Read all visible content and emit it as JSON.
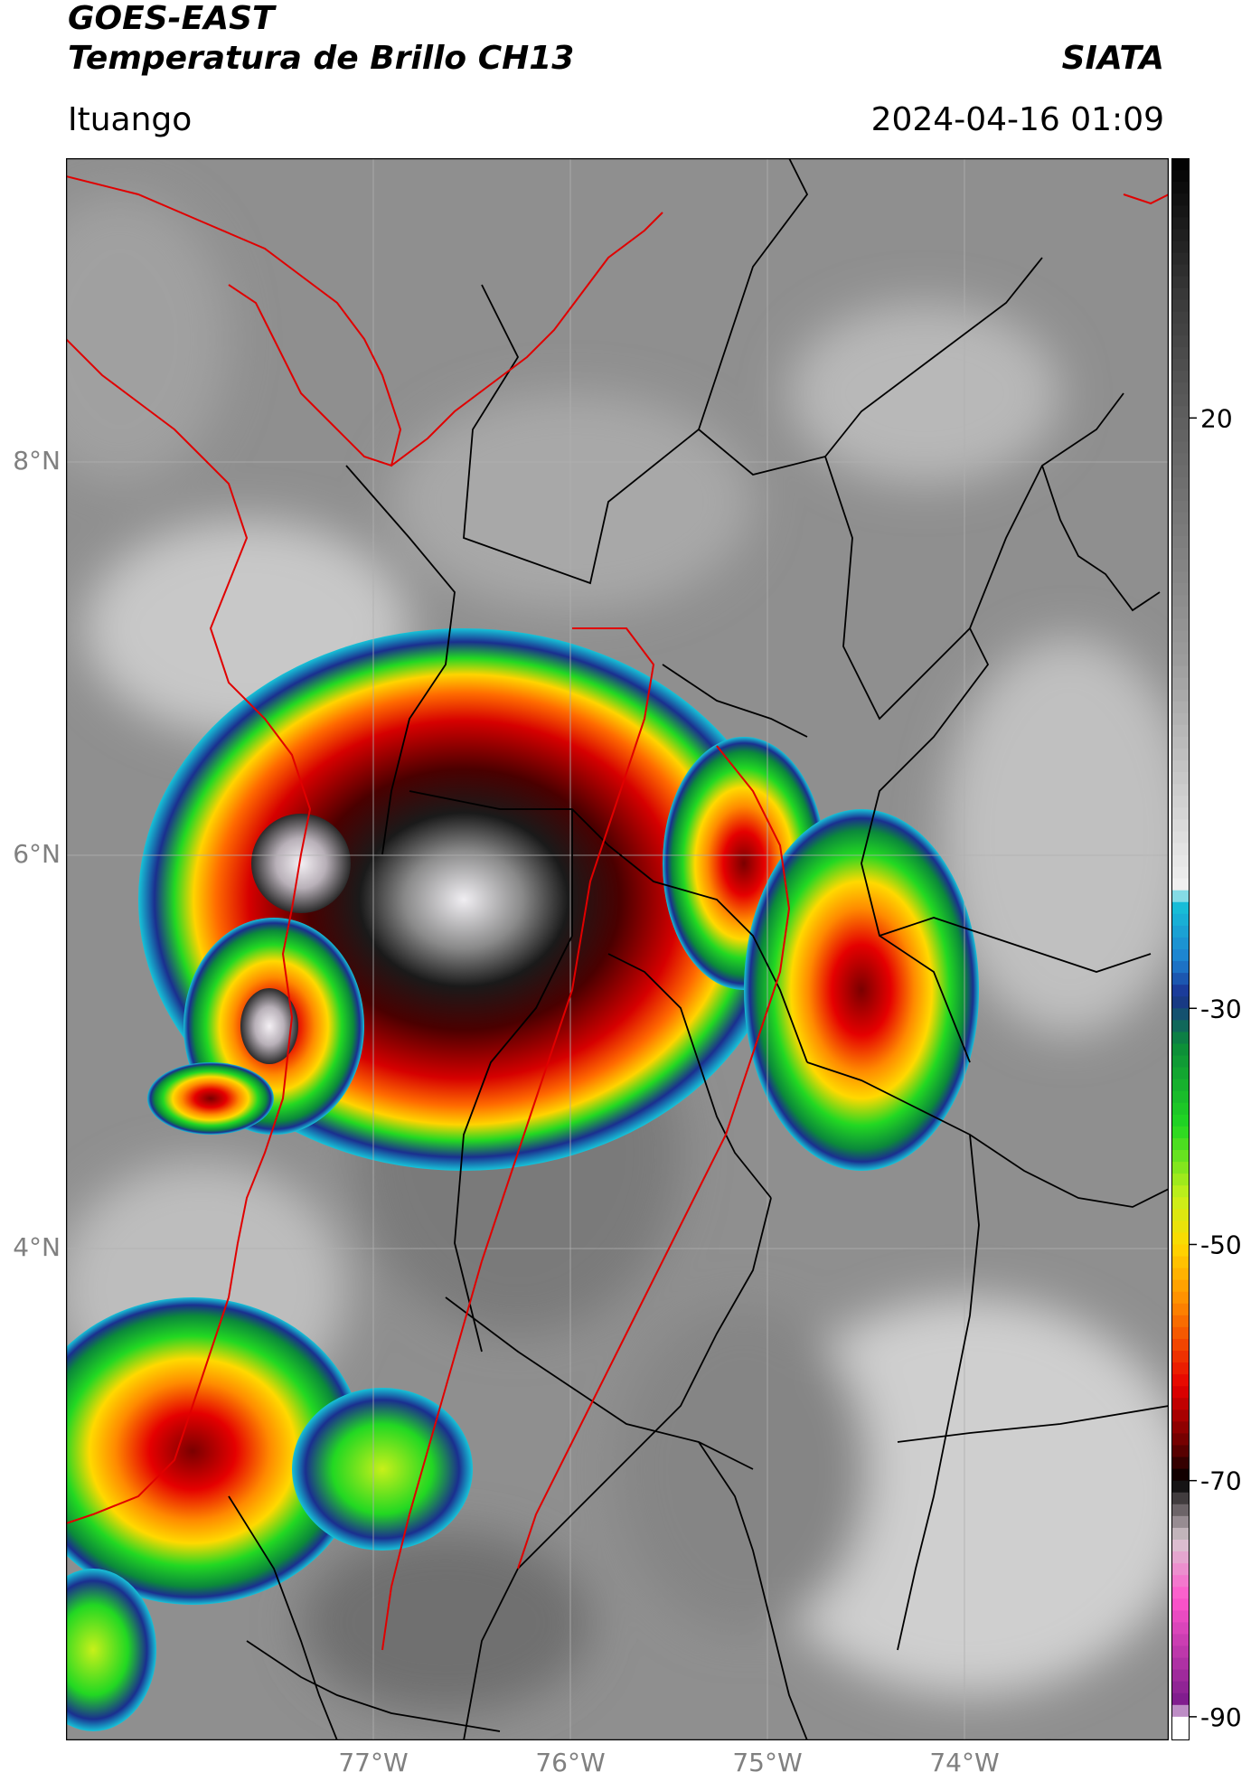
{
  "header": {
    "satellite": "GOES-EAST",
    "product": "Temperatura de Brillo CH13",
    "organization": "SIATA",
    "region": "Ituango",
    "timestamp": "2024-04-16 01:09"
  },
  "map": {
    "lat_labels": [
      {
        "label": "8°N",
        "value": 8
      },
      {
        "label": "6°N",
        "value": 6
      },
      {
        "label": "4°N",
        "value": 4
      }
    ],
    "lon_labels": [
      {
        "label": "77°W",
        "value": -77
      },
      {
        "label": "76°W",
        "value": -76
      },
      {
        "label": "75°W",
        "value": -75
      },
      {
        "label": "74°W",
        "value": -74
      }
    ],
    "label_color": "#808080",
    "border_colors": {
      "country": "#ff0000",
      "department": "#000000"
    }
  },
  "colorbar": {
    "ticks": [
      {
        "label": "20",
        "value": 20
      },
      {
        "label": "-30",
        "value": -30
      },
      {
        "label": "-50",
        "value": -50
      },
      {
        "label": "-70",
        "value": -70
      },
      {
        "label": "-90",
        "value": -90
      }
    ],
    "range": [
      -92,
      42
    ],
    "stops": [
      {
        "v": 42,
        "c": "#000000"
      },
      {
        "v": 30,
        "c": "#3a3a3a"
      },
      {
        "v": 20,
        "c": "#5f5f5f"
      },
      {
        "v": 0,
        "c": "#9a9a9a"
      },
      {
        "v": -20,
        "c": "#f2f2f2"
      },
      {
        "v": -21,
        "c": "#17c3d8"
      },
      {
        "v": -26,
        "c": "#1e7fd0"
      },
      {
        "v": -29,
        "c": "#1a2f8f"
      },
      {
        "v": -33,
        "c": "#0b8a3a"
      },
      {
        "v": -40,
        "c": "#22d822"
      },
      {
        "v": -46,
        "c": "#c8f01a"
      },
      {
        "v": -50,
        "c": "#ffd900"
      },
      {
        "v": -55,
        "c": "#ff8a00"
      },
      {
        "v": -62,
        "c": "#e50000"
      },
      {
        "v": -67,
        "c": "#6a0000"
      },
      {
        "v": -70,
        "c": "#000000"
      },
      {
        "v": -75,
        "c": "#d8c8d0"
      },
      {
        "v": -80,
        "c": "#ff55cc"
      },
      {
        "v": -89,
        "c": "#7a1a8a"
      },
      {
        "v": -90,
        "c": "#ffffff"
      }
    ]
  }
}
